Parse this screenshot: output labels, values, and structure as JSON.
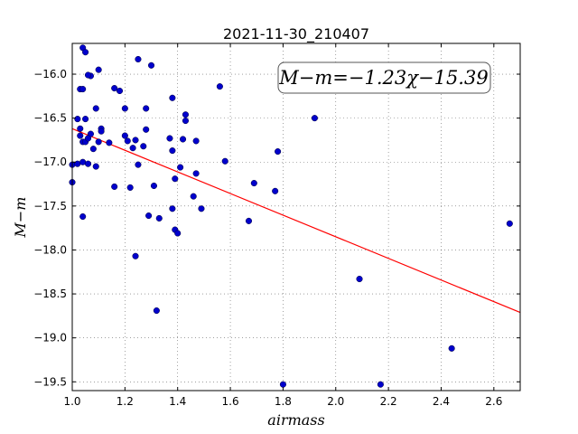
{
  "chart_data": {
    "type": "scatter",
    "title": "2021-11-30_210407",
    "xlabel": "airmass",
    "ylabel": "M−m",
    "xlim": [
      1.0,
      2.7
    ],
    "ylim": [
      -19.6,
      -15.65
    ],
    "y_inverted": true,
    "x_ticks": [
      1.0,
      1.2,
      1.4,
      1.6,
      1.8,
      2.0,
      2.2,
      2.4,
      2.6
    ],
    "x_tick_labels": [
      "1.0",
      "1.2",
      "1.4",
      "1.6",
      "1.8",
      "2.0",
      "2.2",
      "2.4",
      "2.6"
    ],
    "y_ticks": [
      -16.0,
      -16.5,
      -17.0,
      -17.5,
      -18.0,
      -18.5,
      -19.0,
      -19.5
    ],
    "y_tick_labels": [
      "−16.0",
      "−16.5",
      "−17.0",
      "−17.5",
      "−18.0",
      "−18.5",
      "−19.0",
      "−19.5"
    ],
    "grid": true,
    "annotation": "M−m=−1.23χ−15.39",
    "fit": {
      "slope": -1.23,
      "intercept": -15.39,
      "color": "#ff0000"
    },
    "point_color": "#0000cc",
    "points": [
      [
        1.04,
        -15.7
      ],
      [
        1.05,
        -15.75
      ],
      [
        1.07,
        -16.02
      ],
      [
        1.06,
        -16.01
      ],
      [
        1.1,
        -15.95
      ],
      [
        1.03,
        -16.17
      ],
      [
        1.04,
        -16.17
      ],
      [
        1.09,
        -16.39
      ],
      [
        1.02,
        -16.51
      ],
      [
        1.05,
        -16.51
      ],
      [
        1.03,
        -16.62
      ],
      [
        1.03,
        -16.7
      ],
      [
        1.07,
        -16.68
      ],
      [
        1.04,
        -16.77
      ],
      [
        1.05,
        -16.77
      ],
      [
        1.06,
        -16.73
      ],
      [
        1.08,
        -16.85
      ],
      [
        1.1,
        -16.77
      ],
      [
        1.11,
        -16.62
      ],
      [
        1.11,
        -16.65
      ],
      [
        1.14,
        -16.78
      ],
      [
        1.16,
        -16.16
      ],
      [
        1.18,
        -16.19
      ],
      [
        1.2,
        -16.39
      ],
      [
        1.2,
        -16.7
      ],
      [
        1.21,
        -16.76
      ],
      [
        1.23,
        -16.84
      ],
      [
        1.24,
        -16.75
      ],
      [
        1.25,
        -15.83
      ],
      [
        1.27,
        -16.82
      ],
      [
        1.28,
        -16.63
      ],
      [
        1.28,
        -16.39
      ],
      [
        1.3,
        -15.9
      ],
      [
        1.0,
        -17.03
      ],
      [
        1.02,
        -17.02
      ],
      [
        1.04,
        -17.0
      ],
      [
        1.06,
        -17.02
      ],
      [
        1.09,
        -17.05
      ],
      [
        1.0,
        -17.23
      ],
      [
        1.04,
        -17.62
      ],
      [
        1.16,
        -17.28
      ],
      [
        1.22,
        -17.29
      ],
      [
        1.25,
        -17.03
      ],
      [
        1.29,
        -17.61
      ],
      [
        1.31,
        -17.27
      ],
      [
        1.33,
        -17.64
      ],
      [
        1.24,
        -18.07
      ],
      [
        1.32,
        -18.69
      ],
      [
        1.37,
        -16.73
      ],
      [
        1.38,
        -16.27
      ],
      [
        1.38,
        -16.87
      ],
      [
        1.38,
        -17.53
      ],
      [
        1.39,
        -17.19
      ],
      [
        1.39,
        -17.77
      ],
      [
        1.4,
        -17.81
      ],
      [
        1.41,
        -17.06
      ],
      [
        1.42,
        -16.74
      ],
      [
        1.43,
        -16.46
      ],
      [
        1.43,
        -16.53
      ],
      [
        1.46,
        -17.39
      ],
      [
        1.47,
        -16.76
      ],
      [
        1.47,
        -17.13
      ],
      [
        1.49,
        -17.53
      ],
      [
        1.56,
        -16.14
      ],
      [
        1.58,
        -16.99
      ],
      [
        1.67,
        -17.67
      ],
      [
        1.69,
        -17.24
      ],
      [
        1.77,
        -17.33
      ],
      [
        1.78,
        -16.88
      ],
      [
        1.8,
        -19.53
      ],
      [
        1.92,
        -16.5
      ],
      [
        2.09,
        -18.33
      ],
      [
        2.17,
        -19.53
      ],
      [
        2.44,
        -19.12
      ],
      [
        2.66,
        -17.7
      ]
    ]
  }
}
